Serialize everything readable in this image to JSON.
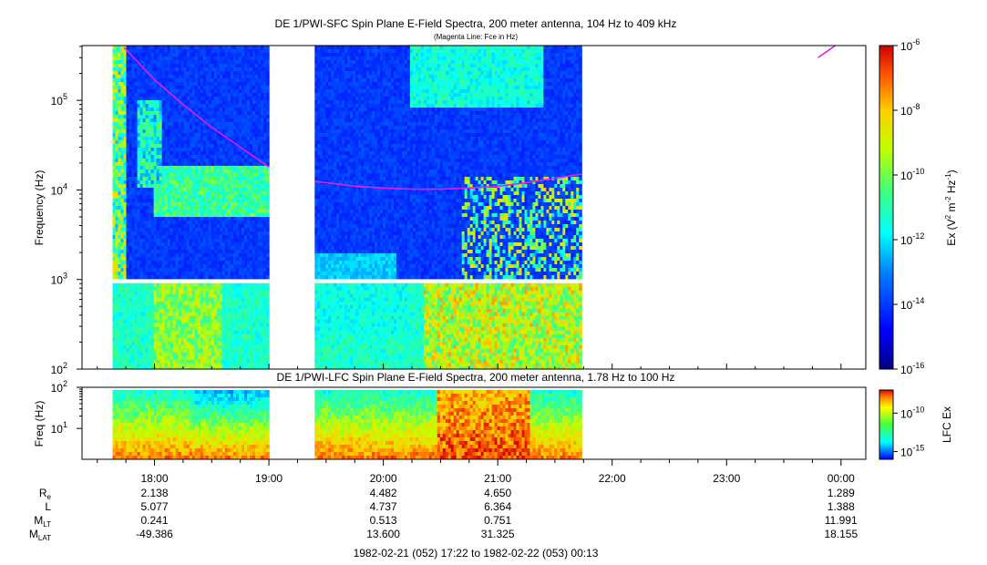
{
  "chart_data": [
    {
      "type": "heatmap",
      "title": "DE 1/PWI-SFC  Spin Plane E-Field Spectra, 200 meter antenna, 104 Hz to 409 kHz",
      "subtitle": "(Magenta Line: Fce in Hz)",
      "ylabel": "Frequency (Hz)",
      "y_scale": "log",
      "ylim": [
        100,
        409000
      ],
      "y_ticks": [
        {
          "value": 100,
          "base": "10",
          "exp": "2"
        },
        {
          "value": 1000,
          "base": "10",
          "exp": "3"
        },
        {
          "value": 10000,
          "base": "10",
          "exp": "4"
        },
        {
          "value": 100000,
          "base": "10",
          "exp": "5"
        }
      ],
      "colorbar": {
        "label": "Ex (V",
        "label_sup1": "2",
        "label_mid": " m",
        "label_sup2": "-2",
        "label_mid2": " Hz",
        "label_sup3": "-1",
        "label_end": ")",
        "scale": "log",
        "range": [
          1e-16,
          1e-06
        ],
        "ticks": [
          {
            "value": 1e-06,
            "base": "10",
            "exp": "-6"
          },
          {
            "value": 1e-08,
            "base": "10",
            "exp": "-8"
          },
          {
            "value": 1e-10,
            "base": "10",
            "exp": "-10"
          },
          {
            "value": 1e-12,
            "base": "10",
            "exp": "-12"
          },
          {
            "value": 1e-14,
            "base": "10",
            "exp": "-14"
          },
          {
            "value": 1e-16,
            "base": "10",
            "exp": "-16"
          }
        ]
      },
      "data_coverage_utc": [
        [
          "17:38",
          "19:00"
        ],
        [
          "19:24",
          "21:44"
        ]
      ],
      "series": [
        {
          "style": "line",
          "color": "#e81ee8",
          "x": [
            "17:44",
            "18:00",
            "18:15",
            "18:30",
            "18:45",
            "19:00"
          ],
          "y": [
            390000,
            170000,
            90000,
            50000,
            30000,
            18000
          ]
        },
        {
          "style": "line",
          "color": "#e81ee8",
          "x": [
            "19:24",
            "19:45",
            "20:00",
            "20:15",
            "20:30",
            "20:45",
            "21:00",
            "21:15",
            "21:30",
            "21:44"
          ],
          "y": [
            12500,
            11000,
            10500,
            10200,
            10200,
            10500,
            11000,
            12000,
            13500,
            15000
          ]
        },
        {
          "style": "line",
          "color": "#e81ee8",
          "x": [
            "23:48",
            "23:57"
          ],
          "y": [
            300000,
            409000
          ]
        }
      ]
    },
    {
      "type": "heatmap",
      "title": "DE 1/PWI-LFC  Spin Plane E-Field Spectra, 200 meter antenna, 1.78 Hz to 100 Hz",
      "ylabel": "Freq (Hz)",
      "y_scale": "log",
      "ylim": [
        1.78,
        100
      ],
      "y_ticks": [
        {
          "value": 10,
          "base": "10",
          "exp": "1"
        },
        {
          "value": 100,
          "base": "10",
          "exp": "2"
        }
      ],
      "colorbar": {
        "label": "LFC Ex",
        "scale": "log",
        "range": [
          1e-16,
          1e-07
        ],
        "ticks": [
          {
            "value": 1e-10,
            "base": "10",
            "exp": "-10"
          },
          {
            "value": 1e-15,
            "base": "10",
            "exp": "-15"
          }
        ]
      },
      "data_coverage_utc": [
        [
          "17:38",
          "19:00"
        ],
        [
          "19:24",
          "21:44"
        ]
      ]
    }
  ],
  "time_axis": {
    "start": "17:22",
    "end": "00:13",
    "major_ticks": [
      {
        "time": "18:00",
        "label": "18:00"
      },
      {
        "time": "19:00",
        "label": "19:00"
      },
      {
        "time": "20:00",
        "label": "20:00"
      },
      {
        "time": "21:00",
        "label": "21:00"
      },
      {
        "time": "22:00",
        "label": "22:00"
      },
      {
        "time": "23:00",
        "label": "23:00"
      },
      {
        "time": "00:00",
        "label": "00:00"
      }
    ]
  },
  "ephemeris": {
    "rows": [
      {
        "name": "R",
        "sub": "e",
        "values": [
          "2.138",
          "4.482",
          "4.650",
          "1.289"
        ]
      },
      {
        "name": "L",
        "sub": "",
        "values": [
          "5.077",
          "4.737",
          "6.364",
          "1.388"
        ]
      },
      {
        "name": "M",
        "sub": "LT",
        "values": [
          "0.241",
          "0.513",
          "0.751",
          "11.991"
        ]
      },
      {
        "name": "M",
        "sub": "LAT",
        "values": [
          "-49.386",
          "13.600",
          "31.325",
          "18.155"
        ]
      }
    ],
    "at_times": [
      "18:00",
      "20:00",
      "21:00",
      "00:00"
    ]
  },
  "footer": "1982-02-21 (052) 17:22 to 1982-02-22 (053) 00:13"
}
